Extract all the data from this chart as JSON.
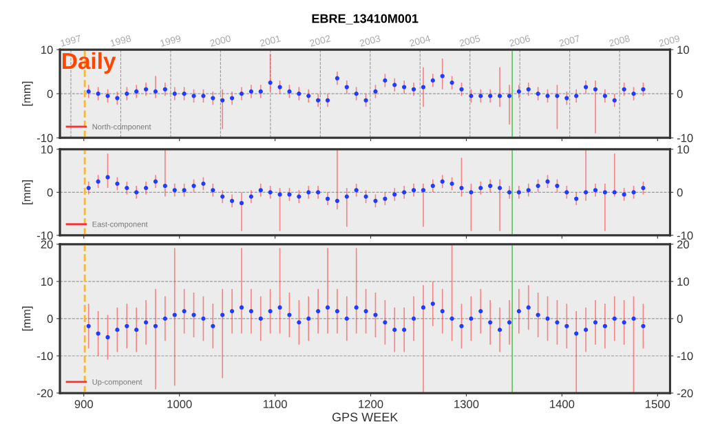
{
  "chart_data": [
    {
      "type": "scatter",
      "title": "EBRE_13410M001",
      "ylabel": "[mm]",
      "annotations": [
        "Daily"
      ],
      "legend": "bottom left",
      "grid": true,
      "marker": "circle",
      "tick_labels": "y",
      "xlim": [
        875,
        1513
      ],
      "xticks": [
        900,
        1000,
        1100,
        1200,
        1300,
        1400,
        1500
      ],
      "ylim": [
        -10,
        10
      ],
      "yticks": [
        -10,
        0,
        10
      ],
      "y2lim": [
        -10,
        10
      ],
      "y2ticks": [
        -10,
        0,
        10
      ],
      "x2lim": [
        1996.78,
        2009.01
      ],
      "x2ticks": [
        1997,
        1998,
        1999,
        2000,
        2001,
        2002,
        2003,
        2004,
        2005,
        2006,
        2007,
        2008,
        2009
      ],
      "ref_lines": [
        {
          "axis": "x",
          "value": 901,
          "color": "#f7b733",
          "line_style": "dashed"
        },
        {
          "axis": "x",
          "value": 1348,
          "color": "#5cc45c",
          "line_style": "solid"
        }
      ],
      "x": [
        905,
        915,
        925,
        935,
        945,
        955,
        965,
        975,
        985,
        995,
        1005,
        1015,
        1025,
        1035,
        1045,
        1055,
        1065,
        1075,
        1085,
        1095,
        1105,
        1115,
        1125,
        1135,
        1145,
        1155,
        1165,
        1175,
        1185,
        1195,
        1205,
        1215,
        1225,
        1235,
        1245,
        1255,
        1265,
        1275,
        1285,
        1295,
        1305,
        1315,
        1325,
        1335,
        1345,
        1355,
        1365,
        1375,
        1385,
        1395,
        1405,
        1415,
        1425,
        1435,
        1445,
        1455,
        1465,
        1475,
        1485
      ],
      "series": [
        {
          "name": "North-component",
          "color": "#1f3cff",
          "values": [
            0.5,
            0,
            -0.5,
            -1,
            0,
            0.5,
            1,
            0.5,
            1,
            0,
            0,
            -0.5,
            -0.5,
            -1,
            -1.5,
            -1,
            0,
            0.5,
            0.5,
            2.5,
            1.5,
            0.5,
            0,
            -0.5,
            -1.5,
            -1.5,
            3.5,
            1.5,
            0,
            -1.5,
            0.5,
            3,
            2,
            1.5,
            1,
            1.5,
            3,
            4,
            2.5,
            1,
            -0.5,
            -0.5,
            -0.5,
            -0.5,
            -0.5,
            0.5,
            1,
            0,
            -0.5,
            -0.5,
            -1,
            -0.5,
            1.5,
            1,
            -0.5,
            -1.5,
            1,
            0,
            1
          ],
          "errors": [
            1.5,
            1.5,
            1.5,
            1.5,
            1.5,
            1.5,
            1.5,
            [
              -1,
              4
            ],
            1.5,
            1.5,
            1.5,
            1.5,
            1.5,
            1.5,
            [
              -8,
              1
            ],
            1.5,
            1.5,
            1.5,
            1.5,
            [
              0.5,
              9
            ],
            1.5,
            1.5,
            1.5,
            1.5,
            1.5,
            1.5,
            1.5,
            1.5,
            1.5,
            1.5,
            1.5,
            1.5,
            1.5,
            1.5,
            1.5,
            [
              -3,
              6
            ],
            1.5,
            [
              1,
              8
            ],
            1.5,
            1.5,
            1.5,
            1.5,
            1.5,
            [
              -3,
              6
            ],
            [
              -7,
              2
            ],
            1.5,
            1.5,
            1.5,
            1.5,
            [
              -8,
              2
            ],
            1.5,
            1.5,
            1.5,
            [
              -9,
              3
            ],
            1.5,
            1.5,
            1.5,
            1.5,
            1.5
          ]
        }
      ]
    },
    {
      "type": "scatter",
      "ylabel": "[mm]",
      "legend": "bottom left",
      "marker": "circle",
      "tick_labels": "y",
      "xlim": [
        875,
        1513
      ],
      "xticks": [
        900,
        1000,
        1100,
        1200,
        1300,
        1400,
        1500
      ],
      "ylim": [
        -10,
        10
      ],
      "yticks": [
        -10,
        0,
        10
      ],
      "y2lim": [
        -10,
        10
      ],
      "y2ticks": [
        -10,
        0,
        10
      ],
      "ref_lines": [
        {
          "axis": "x",
          "value": 901,
          "color": "#f7b733",
          "line_style": "dashed"
        },
        {
          "axis": "x",
          "value": 1348,
          "color": "#5cc45c",
          "line_style": "solid"
        },
        {
          "axis": "y",
          "value": 0,
          "color": "#999999",
          "line_style": "dashed"
        }
      ],
      "x": [
        905,
        915,
        925,
        935,
        945,
        955,
        965,
        975,
        985,
        995,
        1005,
        1015,
        1025,
        1035,
        1045,
        1055,
        1065,
        1075,
        1085,
        1095,
        1105,
        1115,
        1125,
        1135,
        1145,
        1155,
        1165,
        1175,
        1185,
        1195,
        1205,
        1215,
        1225,
        1235,
        1245,
        1255,
        1265,
        1275,
        1285,
        1295,
        1305,
        1315,
        1325,
        1335,
        1345,
        1355,
        1365,
        1375,
        1385,
        1395,
        1405,
        1415,
        1425,
        1435,
        1445,
        1455,
        1465,
        1475,
        1485
      ],
      "series": [
        {
          "name": "East-component",
          "color": "#1f3cff",
          "values": [
            1,
            2.5,
            3.5,
            2,
            1,
            0,
            1,
            2.5,
            1.5,
            0.5,
            0.5,
            1.5,
            2,
            0.5,
            -1,
            -2,
            -2.5,
            -1,
            0.5,
            0,
            -0.5,
            -0.5,
            -1,
            0,
            0,
            -1.5,
            -2,
            -1,
            0.5,
            -1,
            -2,
            -1.5,
            -0.5,
            0,
            0.5,
            0.5,
            1.5,
            2.5,
            2,
            1,
            0,
            1,
            1.5,
            1,
            0,
            0,
            0.5,
            1.5,
            2.5,
            1.5,
            0,
            -1.5,
            0,
            0.5,
            0,
            0,
            -0.5,
            0,
            1
          ],
          "errors": [
            1.5,
            1.5,
            [
              1,
              9
            ],
            1.5,
            1.5,
            1.5,
            1.5,
            1.5,
            [
              -1,
              10
            ],
            1.5,
            1.5,
            1.5,
            1.5,
            1.5,
            1.5,
            1.5,
            [
              -9,
              0
            ],
            1.5,
            1.5,
            1.5,
            [
              -9,
              1
            ],
            1.5,
            1.5,
            1.5,
            1.5,
            1.5,
            [
              -4,
              10
            ],
            [
              -8,
              1
            ],
            1.5,
            1.5,
            1.5,
            1.5,
            1.5,
            1.5,
            1.5,
            [
              -8,
              2
            ],
            1.5,
            1.5,
            1.5,
            [
              -1,
              8
            ],
            [
              -9,
              2
            ],
            1.5,
            1.5,
            [
              -9,
              3
            ],
            1.5,
            1.5,
            1.5,
            1.5,
            1.5,
            1.5,
            1.5,
            1.5,
            [
              -2,
              10
            ],
            1.5,
            [
              -9,
              2
            ],
            [
              -1,
              9
            ],
            1.5,
            1.5,
            1.5
          ]
        }
      ]
    },
    {
      "type": "scatter",
      "ylabel": "[mm]",
      "xlabel": "GPS WEEK",
      "legend": "bottom left",
      "grid": "y",
      "marker": "circle",
      "xlim": [
        875,
        1513
      ],
      "xticks": [
        900,
        1000,
        1100,
        1200,
        1300,
        1400,
        1500
      ],
      "ylim": [
        -20,
        20
      ],
      "yticks": [
        -20,
        -10,
        0,
        10,
        20
      ],
      "y2lim": [
        -20,
        20
      ],
      "y2ticks": [
        -20,
        -10,
        0,
        10,
        20
      ],
      "ref_lines": [
        {
          "axis": "x",
          "value": 901,
          "color": "#f7b733",
          "line_style": "dashed"
        },
        {
          "axis": "x",
          "value": 1348,
          "color": "#5cc45c",
          "line_style": "solid"
        }
      ],
      "x": [
        905,
        915,
        925,
        935,
        945,
        955,
        965,
        975,
        985,
        995,
        1005,
        1015,
        1025,
        1035,
        1045,
        1055,
        1065,
        1075,
        1085,
        1095,
        1105,
        1115,
        1125,
        1135,
        1145,
        1155,
        1165,
        1175,
        1185,
        1195,
        1205,
        1215,
        1225,
        1235,
        1245,
        1255,
        1265,
        1275,
        1285,
        1295,
        1305,
        1315,
        1325,
        1335,
        1345,
        1355,
        1365,
        1375,
        1385,
        1395,
        1405,
        1415,
        1425,
        1435,
        1445,
        1455,
        1465,
        1475,
        1485
      ],
      "series": [
        {
          "name": "Up-component",
          "color": "#1f3cff",
          "values": [
            -2,
            -4,
            -5,
            -3,
            -2,
            -3,
            -1,
            -2,
            0,
            1,
            2,
            1,
            0,
            -2,
            1,
            2,
            3,
            2,
            0,
            2,
            3,
            1,
            -1,
            0,
            2,
            3,
            2,
            0,
            3,
            2,
            1,
            -1,
            -3,
            -3,
            0,
            3,
            4,
            2,
            0,
            -2,
            0,
            2,
            -1,
            -3,
            -1,
            2,
            3,
            1,
            0,
            -1,
            -2,
            -4,
            -3,
            -1,
            -2,
            0,
            -1,
            0,
            -2
          ],
          "errors": [
            6,
            6,
            6,
            6,
            6,
            6,
            6,
            [
              -19,
              8
            ],
            6,
            [
              -18,
              19
            ],
            6,
            6,
            6,
            6,
            [
              -16,
              8
            ],
            6,
            [
              -4,
              19
            ],
            6,
            6,
            6,
            [
              -4,
              19
            ],
            6,
            6,
            6,
            6,
            [
              -4,
              19
            ],
            6,
            6,
            [
              -4,
              19
            ],
            6,
            6,
            6,
            6,
            6,
            6,
            [
              -20,
              9
            ],
            6,
            6,
            [
              -6,
              20
            ],
            6,
            6,
            6,
            6,
            6,
            6,
            6,
            6,
            6,
            6,
            6,
            6,
            [
              -20,
              2
            ],
            6,
            6,
            6,
            6,
            6,
            [
              -20,
              6
            ],
            6
          ]
        }
      ]
    }
  ]
}
